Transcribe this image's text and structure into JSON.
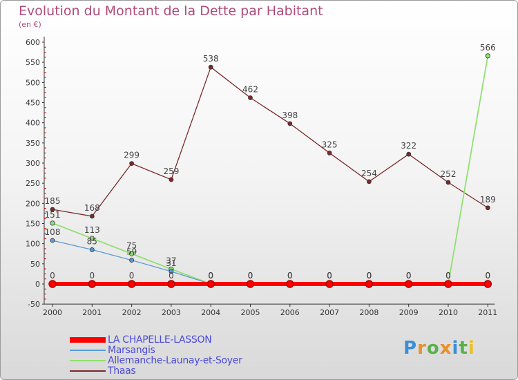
{
  "page": {
    "title": "Evolution du Montant de la Dette par Habitant",
    "subtitle": "(en €)",
    "brand": "Proxiti"
  },
  "colors": {
    "title": "#b04a7a",
    "legend_text": "#4b4bd6",
    "axis": "#333333",
    "tick_red": "#d00000"
  },
  "chart_data": {
    "type": "line",
    "title": "Evolution du Montant de la Dette par Habitant",
    "subtitle": "(en €)",
    "xlabel": "",
    "ylabel": "",
    "categories": [
      "2000",
      "2001",
      "2002",
      "2003",
      "2004",
      "2005",
      "2006",
      "2007",
      "2008",
      "2009",
      "2010",
      "2011"
    ],
    "ylim": [
      -50,
      600
    ],
    "yticks": [
      -50,
      0,
      50,
      100,
      150,
      200,
      250,
      300,
      350,
      400,
      450,
      500,
      550,
      600
    ],
    "grid": false,
    "legend_position": "bottom-left",
    "series": [
      {
        "name": "LA CHAPELLE-LASSON",
        "color": "#ff0000",
        "values": [
          0,
          0,
          0,
          0,
          0,
          0,
          0,
          0,
          0,
          0,
          0,
          0
        ],
        "labels": [
          "0",
          "0",
          "0",
          "0",
          "0",
          "0",
          "0",
          "0",
          "0",
          "0",
          "0",
          "0"
        ]
      },
      {
        "name": "Marsangis",
        "color": "#5b9bd5",
        "values": [
          108,
          85,
          59,
          31,
          0,
          0,
          0,
          0,
          0,
          0,
          0,
          0
        ],
        "labels": [
          "108",
          "85",
          "59",
          "31",
          "0",
          "0",
          "0",
          "0",
          "0",
          "0",
          "0",
          "0"
        ]
      },
      {
        "name": "Allemanche-Launay-et-Soyer",
        "color": "#90e070",
        "values": [
          151,
          113,
          75,
          37,
          0,
          0,
          0,
          0,
          0,
          0,
          0,
          566
        ],
        "labels": [
          "151",
          "113",
          "75",
          "37",
          "0",
          "0",
          "0",
          "0",
          "0",
          "0",
          "0",
          "566"
        ]
      },
      {
        "name": "Thaas",
        "color": "#7a2a2a",
        "values": [
          185,
          168,
          299,
          259,
          538,
          462,
          398,
          325,
          254,
          322,
          252,
          189
        ],
        "labels": [
          "185",
          "168",
          "299",
          "259",
          "538",
          "462",
          "398",
          "325",
          "254",
          "322",
          "252",
          "189"
        ]
      }
    ]
  }
}
